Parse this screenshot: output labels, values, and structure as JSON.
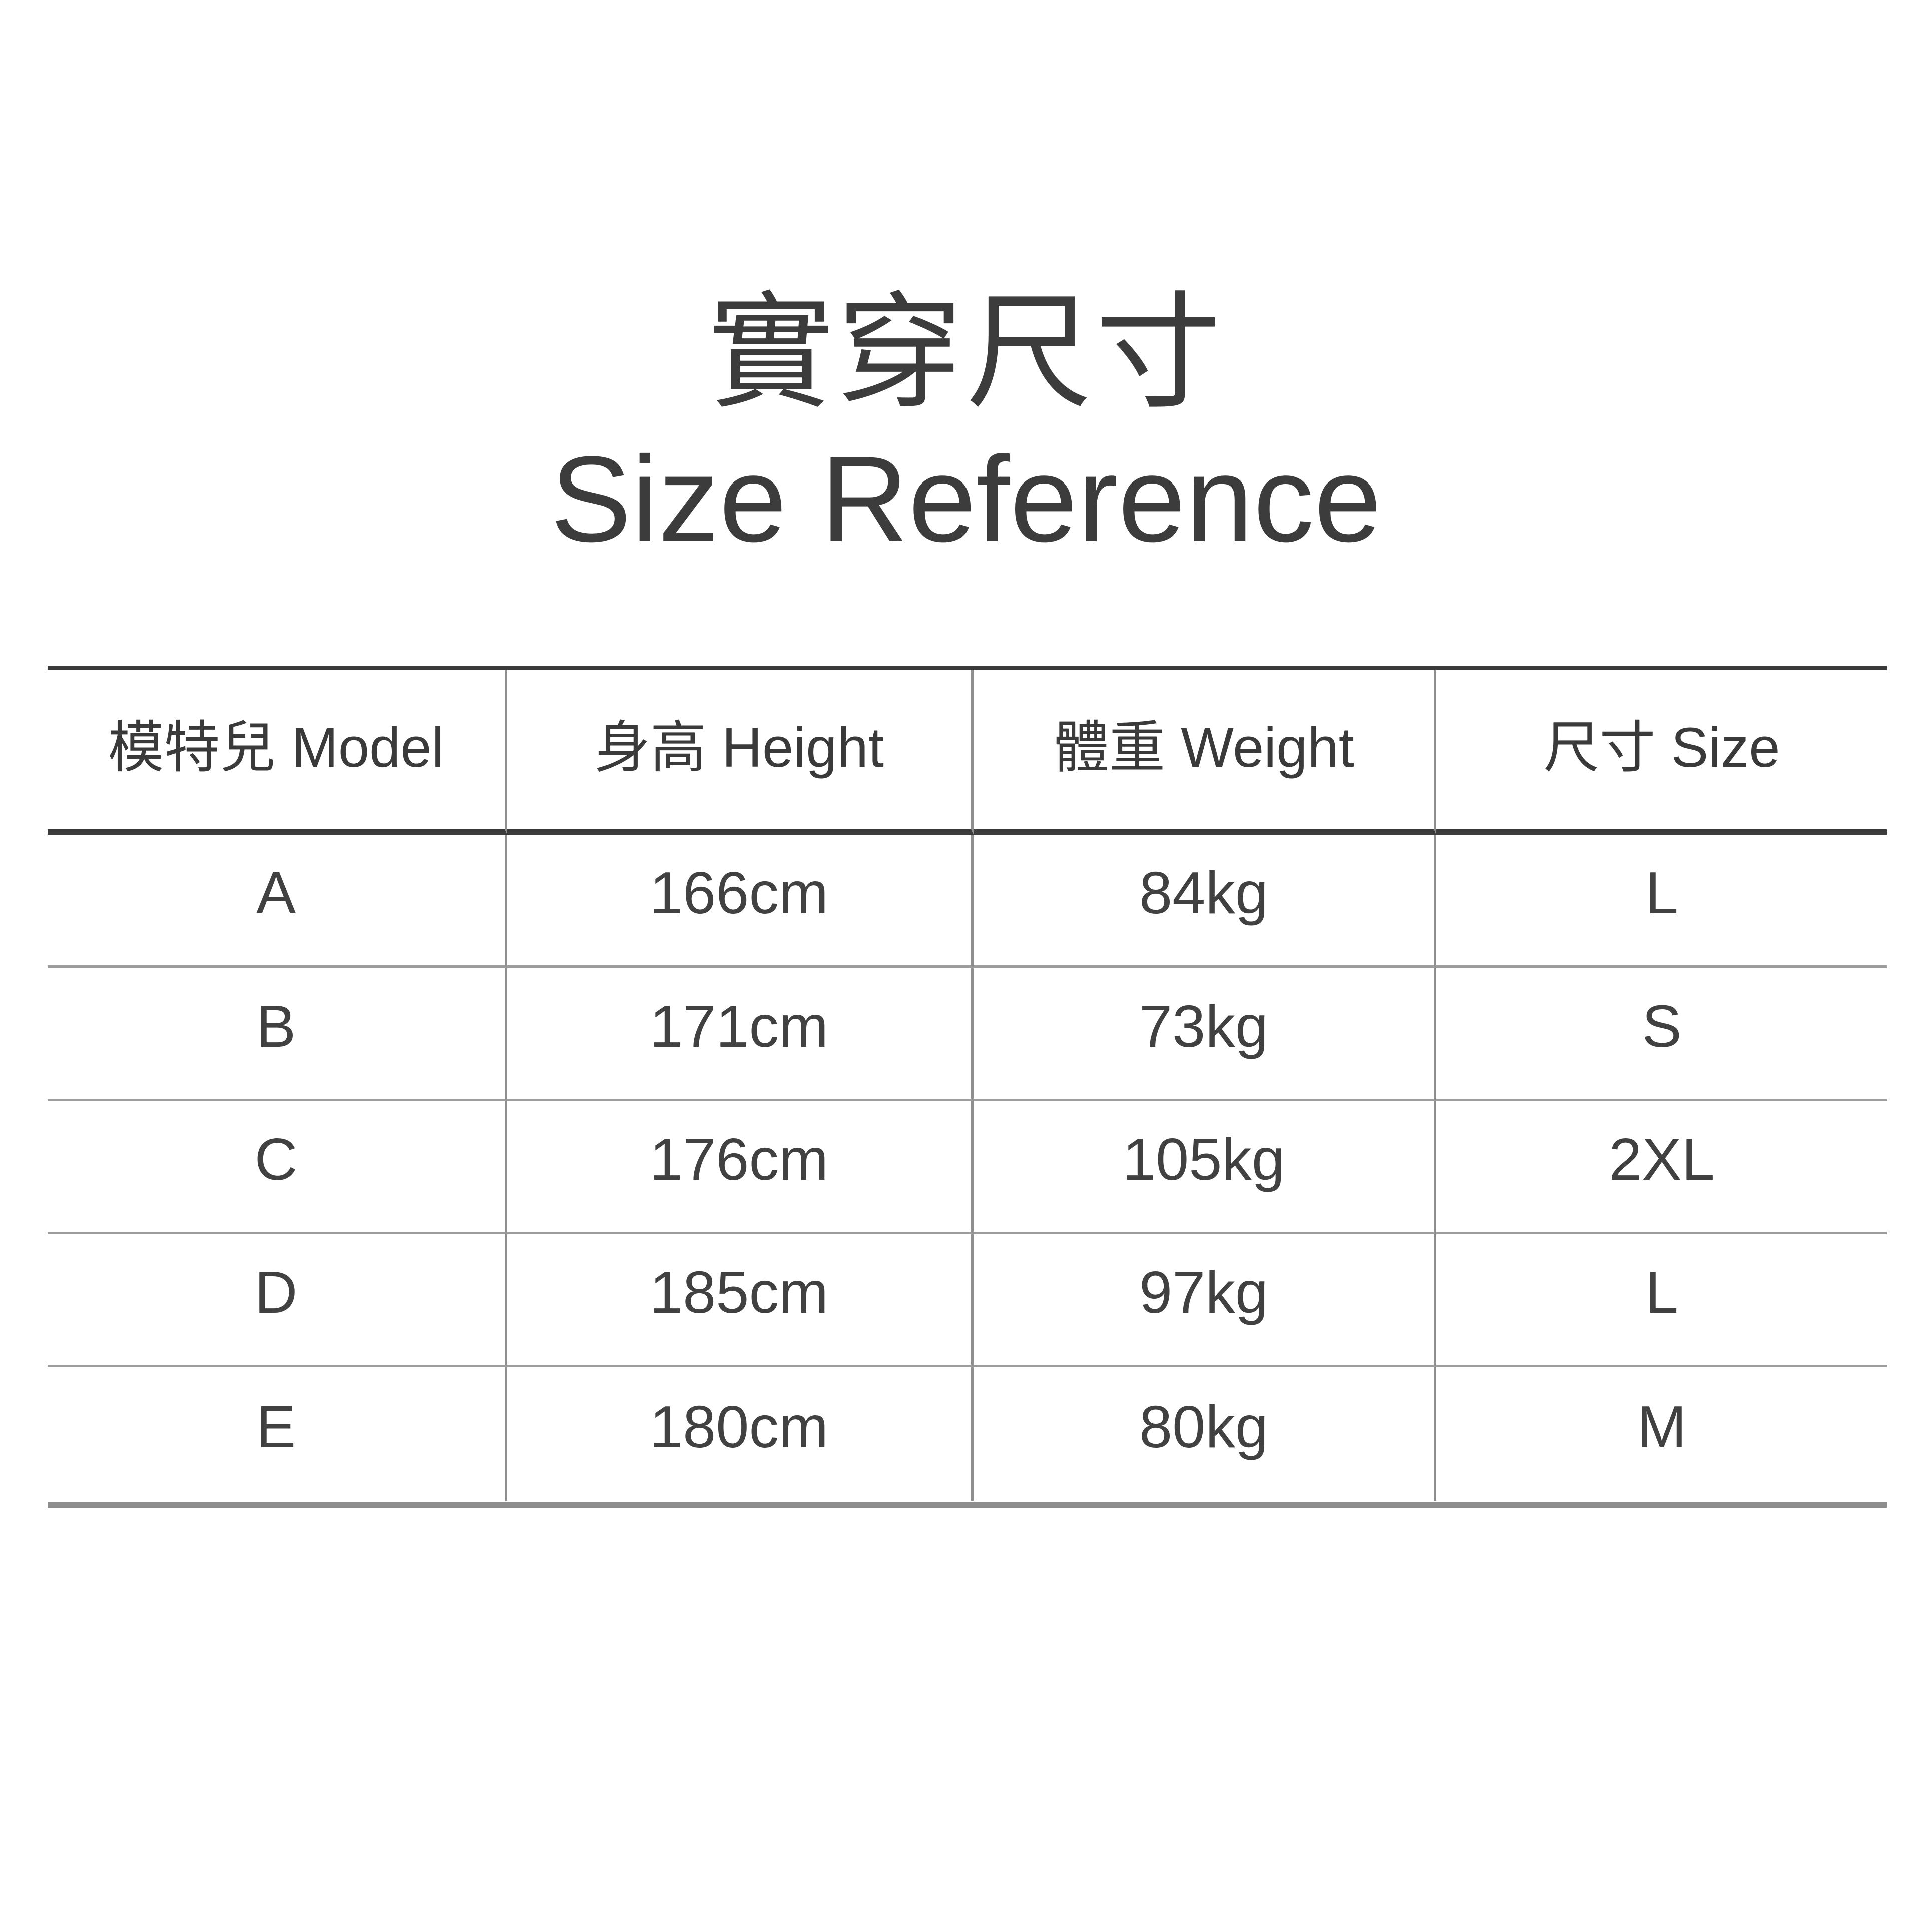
{
  "page": {
    "background": "#ffffff",
    "text_color": "#3a3a3a"
  },
  "title": {
    "zh": "實穿尺寸",
    "en": "Size Reference"
  },
  "table": {
    "headers": [
      "模特兒 Model",
      "身高 Height",
      "體重 Weight",
      "尺寸 Size"
    ],
    "rows": [
      [
        "A",
        "166cm",
        "84kg",
        "L"
      ],
      [
        "B",
        "171cm",
        "73kg",
        "S"
      ],
      [
        "C",
        "176cm",
        "105kg",
        "2XL"
      ],
      [
        "D",
        "185cm",
        "97kg",
        "L"
      ],
      [
        "E",
        "180cm",
        "80kg",
        "M"
      ]
    ]
  },
  "colors": {
    "rule_dark": "#3b3b3b",
    "rule_gray": "#9d9d9d",
    "rule_bottom": "#8e8e8e",
    "background": "#ffffff",
    "text": "#3a3a3a"
  }
}
